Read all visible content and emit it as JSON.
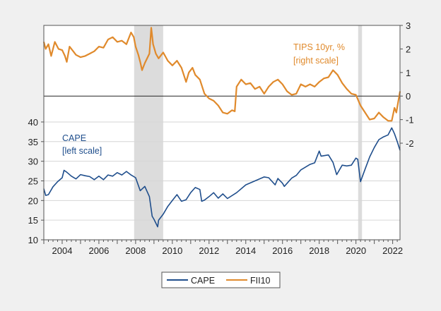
{
  "chart_data": {
    "type": "line",
    "title": "",
    "xlabel": "",
    "x_range": [
      2003.0,
      2022.4
    ],
    "x_ticks": [
      "2004",
      "2006",
      "2008",
      "2010",
      "2012",
      "2014",
      "2016",
      "2018",
      "2020",
      "2022"
    ],
    "left_axis": {
      "range": [
        10,
        64.6
      ],
      "ticks": [
        "10",
        "15",
        "20",
        "25",
        "30",
        "35",
        "40"
      ]
    },
    "right_axis": {
      "range": [
        -6.1,
        3
      ],
      "ticks": [
        "3",
        "2",
        "1",
        "0",
        "-1",
        "-2"
      ]
    },
    "grid": true,
    "zero_line_right": true,
    "recessions": [
      [
        2007.92,
        2009.5
      ],
      [
        2020.12,
        2020.33
      ]
    ],
    "legend": {
      "placement": "bottom",
      "entries": [
        "CAPE",
        "FII10"
      ]
    },
    "annotations": {
      "cape_line1": "CAPE",
      "cape_line2": "[left scale]",
      "tips_line1": "TIPS 10yr, %",
      "tips_line2": "[right scale]"
    },
    "series": [
      {
        "name": "CAPE",
        "axis": "left",
        "color": "#1f4e8c",
        "x": [
          2003.0,
          2003.1,
          2003.25,
          2003.5,
          2003.75,
          2004.0,
          2004.1,
          2004.25,
          2004.5,
          2004.75,
          2005.0,
          2005.25,
          2005.5,
          2005.75,
          2006.0,
          2006.25,
          2006.5,
          2006.75,
          2007.0,
          2007.25,
          2007.5,
          2007.75,
          2008.0,
          2008.25,
          2008.5,
          2008.75,
          2008.9,
          2009.0,
          2009.2,
          2009.25,
          2009.5,
          2009.75,
          2010.0,
          2010.25,
          2010.5,
          2010.75,
          2011.0,
          2011.25,
          2011.5,
          2011.6,
          2011.75,
          2012.0,
          2012.25,
          2012.5,
          2012.75,
          2013.0,
          2013.5,
          2014.0,
          2014.5,
          2015.0,
          2015.25,
          2015.6,
          2015.75,
          2016.0,
          2016.1,
          2016.5,
          2016.75,
          2017.0,
          2017.5,
          2017.75,
          2018.0,
          2018.1,
          2018.5,
          2018.75,
          2018.95,
          2019.25,
          2019.5,
          2019.75,
          2020.0,
          2020.1,
          2020.25,
          2020.5,
          2020.75,
          2021.0,
          2021.25,
          2021.5,
          2021.75,
          2021.95,
          2022.1,
          2022.25,
          2022.4
        ],
        "values": [
          23,
          21.3,
          21.5,
          23.5,
          24.8,
          25.8,
          27.7,
          27.2,
          26.2,
          25.5,
          26.6,
          26.3,
          26.1,
          25.3,
          26.2,
          25.3,
          26.5,
          26.2,
          27.1,
          26.5,
          27.4,
          26.5,
          25.8,
          22.5,
          23.6,
          21.0,
          16,
          15.2,
          13.3,
          15,
          16.5,
          18.5,
          20,
          21.5,
          19.8,
          20.2,
          22,
          23.3,
          22.8,
          19.8,
          20.1,
          21.0,
          22,
          20.6,
          21.7,
          20.5,
          22,
          24,
          25,
          26,
          25.8,
          24,
          25.6,
          24.4,
          23.6,
          25.7,
          26.4,
          27.8,
          29.2,
          29.6,
          32.6,
          31.3,
          31.6,
          29.7,
          26.6,
          29,
          28.8,
          29,
          30.8,
          30.5,
          24.8,
          28,
          31.1,
          33.5,
          35.5,
          36.2,
          36.7,
          38.5,
          37,
          35,
          32.8
        ]
      },
      {
        "name": "FII10",
        "axis": "right",
        "color": "#e08a2c",
        "x": [
          2003.0,
          2003.1,
          2003.25,
          2003.4,
          2003.6,
          2003.8,
          2004.0,
          2004.15,
          2004.25,
          2004.4,
          2004.6,
          2004.75,
          2005.0,
          2005.25,
          2005.5,
          2005.75,
          2006.0,
          2006.25,
          2006.5,
          2006.75,
          2007.0,
          2007.25,
          2007.5,
          2007.75,
          2007.9,
          2008.0,
          2008.15,
          2008.25,
          2008.35,
          2008.5,
          2008.75,
          2008.85,
          2008.95,
          2009.1,
          2009.25,
          2009.5,
          2009.75,
          2010.0,
          2010.25,
          2010.5,
          2010.75,
          2010.9,
          2011.1,
          2011.25,
          2011.5,
          2011.75,
          2012.0,
          2012.25,
          2012.5,
          2012.75,
          2013.0,
          2013.25,
          2013.4,
          2013.5,
          2013.75,
          2014.0,
          2014.25,
          2014.5,
          2014.75,
          2015.0,
          2015.25,
          2015.5,
          2015.75,
          2016.0,
          2016.25,
          2016.5,
          2016.75,
          2017.0,
          2017.25,
          2017.5,
          2017.75,
          2018.0,
          2018.25,
          2018.5,
          2018.75,
          2019.0,
          2019.25,
          2019.5,
          2019.75,
          2020.0,
          2020.25,
          2020.5,
          2020.75,
          2021.0,
          2021.25,
          2021.5,
          2021.75,
          2021.95,
          2022.1,
          2022.2,
          2022.4
        ],
        "values": [
          2.3,
          2.0,
          2.2,
          1.7,
          2.3,
          2.0,
          1.95,
          1.7,
          1.45,
          2.1,
          1.9,
          1.75,
          1.65,
          1.7,
          1.8,
          1.9,
          2.1,
          2.05,
          2.4,
          2.5,
          2.3,
          2.35,
          2.2,
          2.7,
          2.5,
          2.1,
          1.75,
          1.45,
          1.1,
          1.4,
          1.8,
          2.9,
          2.2,
          1.8,
          1.6,
          1.85,
          1.5,
          1.3,
          1.5,
          1.2,
          0.6,
          1.0,
          1.2,
          0.9,
          0.7,
          0.1,
          -0.1,
          -0.2,
          -0.4,
          -0.7,
          -0.75,
          -0.6,
          -0.65,
          0.4,
          0.7,
          0.5,
          0.55,
          0.3,
          0.4,
          0.1,
          0.4,
          0.6,
          0.7,
          0.5,
          0.2,
          0.05,
          0.1,
          0.5,
          0.4,
          0.5,
          0.4,
          0.6,
          0.75,
          0.8,
          1.1,
          0.9,
          0.55,
          0.3,
          0.1,
          0.05,
          -0.4,
          -0.7,
          -1.0,
          -0.95,
          -0.7,
          -0.9,
          -1.05,
          -1.05,
          -0.5,
          -0.7,
          0.2
        ]
      }
    ]
  }
}
